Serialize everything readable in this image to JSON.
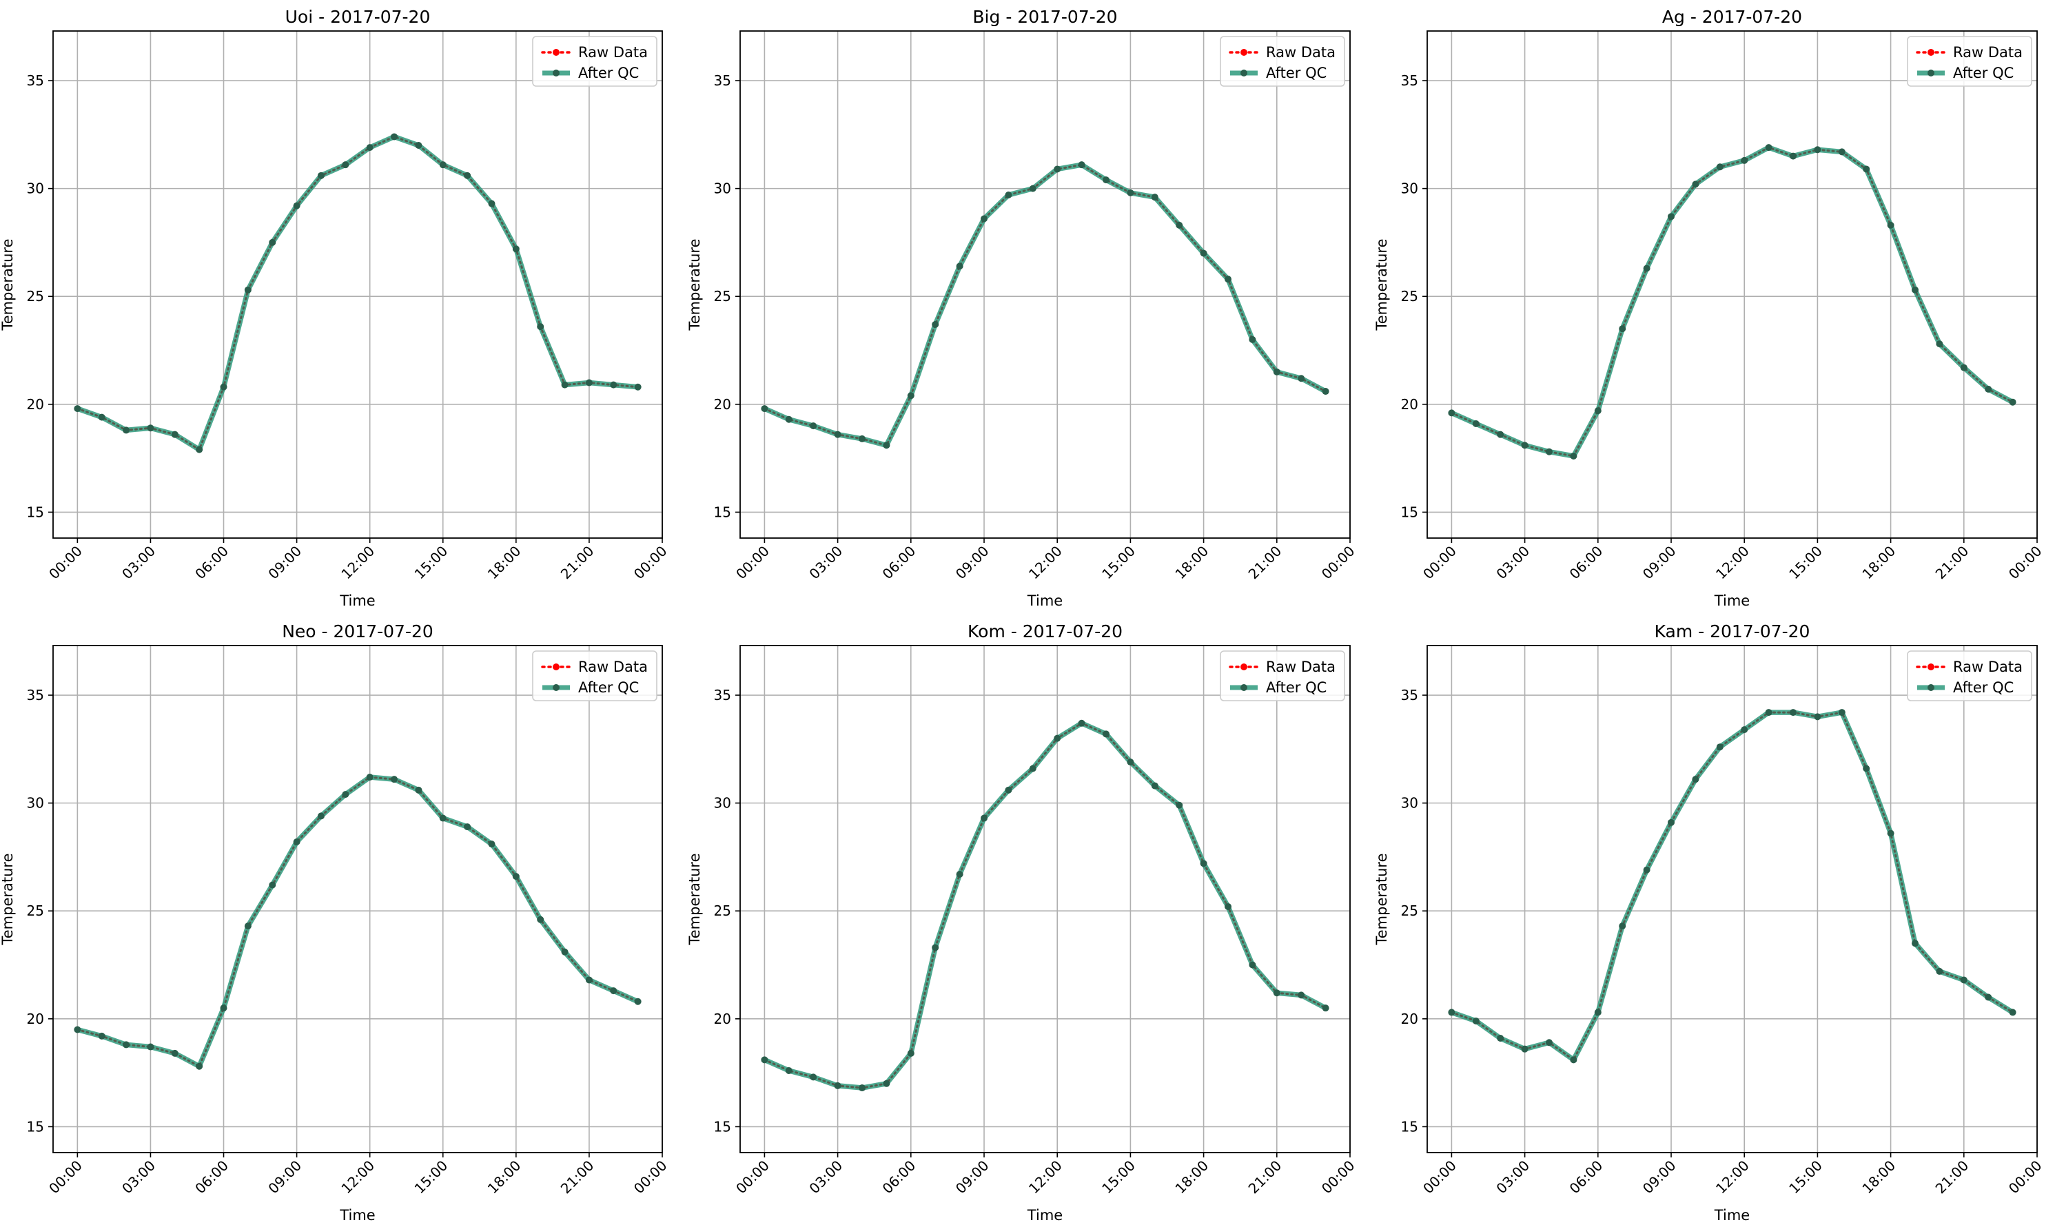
{
  "chart_data": [
    {
      "type": "line",
      "title": "Uoi - 2017-07-20",
      "xlabel": "Time",
      "ylabel": "Temperature",
      "xlim": [
        "-01:00",
        "24:00"
      ],
      "ylim": [
        13.8,
        37.3
      ],
      "yticks": [
        15,
        20,
        25,
        30,
        35
      ],
      "xticks": [
        "00:00",
        "03:00",
        "06:00",
        "09:00",
        "12:00",
        "15:00",
        "18:00",
        "21:00",
        "00:00"
      ],
      "grid": true,
      "legend_position": "top-right",
      "x": [
        "00:00",
        "01:00",
        "02:00",
        "03:00",
        "04:00",
        "05:00",
        "06:00",
        "07:00",
        "08:00",
        "09:00",
        "10:00",
        "11:00",
        "12:00",
        "13:00",
        "14:00",
        "15:00",
        "16:00",
        "17:00",
        "18:00",
        "19:00",
        "20:00",
        "21:00",
        "22:00",
        "23:00"
      ],
      "series": [
        {
          "name": "Raw Data",
          "color": "#ff0000",
          "values": [
            19.8,
            19.4,
            18.8,
            18.9,
            18.6,
            17.9,
            20.8,
            25.3,
            27.5,
            29.2,
            30.6,
            31.1,
            31.9,
            32.4,
            32.0,
            31.1,
            30.6,
            29.3,
            27.2,
            23.6,
            20.9,
            21.0,
            20.9,
            20.8
          ]
        },
        {
          "name": "After QC",
          "color": "#2e9a7c",
          "values": [
            19.8,
            19.4,
            18.8,
            18.9,
            18.6,
            17.9,
            20.8,
            25.3,
            27.5,
            29.2,
            30.6,
            31.1,
            31.9,
            32.4,
            32.0,
            31.1,
            30.6,
            29.3,
            27.2,
            23.6,
            20.9,
            21.0,
            20.9,
            20.8
          ]
        }
      ]
    },
    {
      "type": "line",
      "title": "Big - 2017-07-20",
      "xlabel": "Time",
      "ylabel": "Temperature",
      "xlim": [
        "-01:00",
        "24:00"
      ],
      "ylim": [
        13.8,
        37.3
      ],
      "yticks": [
        15,
        20,
        25,
        30,
        35
      ],
      "xticks": [
        "00:00",
        "03:00",
        "06:00",
        "09:00",
        "12:00",
        "15:00",
        "18:00",
        "21:00",
        "00:00"
      ],
      "grid": true,
      "legend_position": "top-right",
      "x": [
        "00:00",
        "01:00",
        "02:00",
        "03:00",
        "04:00",
        "05:00",
        "06:00",
        "07:00",
        "08:00",
        "09:00",
        "10:00",
        "11:00",
        "12:00",
        "13:00",
        "14:00",
        "15:00",
        "16:00",
        "17:00",
        "18:00",
        "19:00",
        "20:00",
        "21:00",
        "22:00",
        "23:00"
      ],
      "series": [
        {
          "name": "Raw Data",
          "color": "#ff0000",
          "values": [
            19.8,
            19.3,
            19.0,
            18.6,
            18.4,
            18.1,
            20.4,
            23.7,
            26.4,
            28.6,
            29.7,
            30.0,
            30.9,
            31.1,
            30.4,
            29.8,
            29.6,
            28.3,
            27.0,
            25.8,
            23.0,
            21.5,
            21.2,
            20.6
          ]
        },
        {
          "name": "After QC",
          "color": "#2e9a7c",
          "values": [
            19.8,
            19.3,
            19.0,
            18.6,
            18.4,
            18.1,
            20.4,
            23.7,
            26.4,
            28.6,
            29.7,
            30.0,
            30.9,
            31.1,
            30.4,
            29.8,
            29.6,
            28.3,
            27.0,
            25.8,
            23.0,
            21.5,
            21.2,
            20.6
          ]
        }
      ]
    },
    {
      "type": "line",
      "title": "Ag - 2017-07-20",
      "xlabel": "Time",
      "ylabel": "Temperature",
      "xlim": [
        "-01:00",
        "24:00"
      ],
      "ylim": [
        13.8,
        37.3
      ],
      "yticks": [
        15,
        20,
        25,
        30,
        35
      ],
      "xticks": [
        "00:00",
        "03:00",
        "06:00",
        "09:00",
        "12:00",
        "15:00",
        "18:00",
        "21:00",
        "00:00"
      ],
      "grid": true,
      "legend_position": "top-right",
      "x": [
        "00:00",
        "01:00",
        "02:00",
        "03:00",
        "04:00",
        "05:00",
        "06:00",
        "07:00",
        "08:00",
        "09:00",
        "10:00",
        "11:00",
        "12:00",
        "13:00",
        "14:00",
        "15:00",
        "16:00",
        "17:00",
        "18:00",
        "19:00",
        "20:00",
        "21:00",
        "22:00",
        "23:00"
      ],
      "series": [
        {
          "name": "Raw Data",
          "color": "#ff0000",
          "values": [
            19.6,
            19.1,
            18.6,
            18.1,
            17.8,
            17.6,
            19.7,
            23.5,
            26.3,
            28.7,
            30.2,
            31.0,
            31.3,
            31.9,
            31.5,
            31.8,
            31.7,
            30.9,
            28.3,
            25.3,
            22.8,
            21.7,
            20.7,
            20.1
          ]
        },
        {
          "name": "After QC",
          "color": "#2e9a7c",
          "values": [
            19.6,
            19.1,
            18.6,
            18.1,
            17.8,
            17.6,
            19.7,
            23.5,
            26.3,
            28.7,
            30.2,
            31.0,
            31.3,
            31.9,
            31.5,
            31.8,
            31.7,
            30.9,
            28.3,
            25.3,
            22.8,
            21.7,
            20.7,
            20.1
          ]
        }
      ]
    },
    {
      "type": "line",
      "title": "Neo - 2017-07-20",
      "xlabel": "Time",
      "ylabel": "Temperature",
      "xlim": [
        "-01:00",
        "24:00"
      ],
      "ylim": [
        13.8,
        37.3
      ],
      "yticks": [
        15,
        20,
        25,
        30,
        35
      ],
      "xticks": [
        "00:00",
        "03:00",
        "06:00",
        "09:00",
        "12:00",
        "15:00",
        "18:00",
        "21:00",
        "00:00"
      ],
      "grid": true,
      "legend_position": "top-right",
      "x": [
        "00:00",
        "01:00",
        "02:00",
        "03:00",
        "04:00",
        "05:00",
        "06:00",
        "07:00",
        "08:00",
        "09:00",
        "10:00",
        "11:00",
        "12:00",
        "13:00",
        "14:00",
        "15:00",
        "16:00",
        "17:00",
        "18:00",
        "19:00",
        "20:00",
        "21:00",
        "22:00",
        "23:00"
      ],
      "series": [
        {
          "name": "Raw Data",
          "color": "#ff0000",
          "values": [
            19.5,
            19.2,
            18.8,
            18.7,
            18.4,
            17.8,
            20.5,
            24.3,
            26.2,
            28.2,
            29.4,
            30.4,
            31.2,
            31.1,
            30.6,
            29.3,
            28.9,
            28.1,
            26.6,
            24.6,
            23.1,
            21.8,
            21.3,
            20.8
          ]
        },
        {
          "name": "After QC",
          "color": "#2e9a7c",
          "values": [
            19.5,
            19.2,
            18.8,
            18.7,
            18.4,
            17.8,
            20.5,
            24.3,
            26.2,
            28.2,
            29.4,
            30.4,
            31.2,
            31.1,
            30.6,
            29.3,
            28.9,
            28.1,
            26.6,
            24.6,
            23.1,
            21.8,
            21.3,
            20.8
          ]
        }
      ]
    },
    {
      "type": "line",
      "title": "Kom - 2017-07-20",
      "xlabel": "Time",
      "ylabel": "Temperature",
      "xlim": [
        "-01:00",
        "24:00"
      ],
      "ylim": [
        13.8,
        37.3
      ],
      "yticks": [
        15,
        20,
        25,
        30,
        35
      ],
      "xticks": [
        "00:00",
        "03:00",
        "06:00",
        "09:00",
        "12:00",
        "15:00",
        "18:00",
        "21:00",
        "00:00"
      ],
      "grid": true,
      "legend_position": "top-right",
      "x": [
        "00:00",
        "01:00",
        "02:00",
        "03:00",
        "04:00",
        "05:00",
        "06:00",
        "07:00",
        "08:00",
        "09:00",
        "10:00",
        "11:00",
        "12:00",
        "13:00",
        "14:00",
        "15:00",
        "16:00",
        "17:00",
        "18:00",
        "19:00",
        "20:00",
        "21:00",
        "22:00",
        "23:00"
      ],
      "series": [
        {
          "name": "Raw Data",
          "color": "#ff0000",
          "values": [
            18.1,
            17.6,
            17.3,
            16.9,
            16.8,
            17.0,
            18.4,
            23.3,
            26.7,
            29.3,
            30.6,
            31.6,
            33.0,
            33.7,
            33.2,
            31.9,
            30.8,
            29.9,
            27.2,
            25.2,
            22.5,
            21.2,
            21.1,
            20.5
          ]
        },
        {
          "name": "After QC",
          "color": "#2e9a7c",
          "values": [
            18.1,
            17.6,
            17.3,
            16.9,
            16.8,
            17.0,
            18.4,
            23.3,
            26.7,
            29.3,
            30.6,
            31.6,
            33.0,
            33.7,
            33.2,
            31.9,
            30.8,
            29.9,
            27.2,
            25.2,
            22.5,
            21.2,
            21.1,
            20.5
          ]
        }
      ]
    },
    {
      "type": "line",
      "title": "Kam - 2017-07-20",
      "xlabel": "Time",
      "ylabel": "Temperature",
      "xlim": [
        "-01:00",
        "24:00"
      ],
      "ylim": [
        13.8,
        37.3
      ],
      "yticks": [
        15,
        20,
        25,
        30,
        35
      ],
      "xticks": [
        "00:00",
        "03:00",
        "06:00",
        "09:00",
        "12:00",
        "15:00",
        "18:00",
        "21:00",
        "00:00"
      ],
      "grid": true,
      "legend_position": "top-right",
      "x": [
        "00:00",
        "01:00",
        "02:00",
        "03:00",
        "04:00",
        "05:00",
        "06:00",
        "07:00",
        "08:00",
        "09:00",
        "10:00",
        "11:00",
        "12:00",
        "13:00",
        "14:00",
        "15:00",
        "16:00",
        "17:00",
        "18:00",
        "19:00",
        "20:00",
        "21:00",
        "22:00",
        "23:00"
      ],
      "series": [
        {
          "name": "Raw Data",
          "color": "#ff0000",
          "values": [
            20.3,
            19.9,
            19.1,
            18.6,
            18.9,
            18.1,
            20.3,
            24.3,
            26.9,
            29.1,
            31.1,
            32.6,
            33.4,
            34.2,
            34.2,
            34.0,
            34.2,
            31.6,
            28.6,
            23.5,
            22.2,
            21.8,
            21.0,
            20.3
          ]
        },
        {
          "name": "After QC",
          "color": "#2e9a7c",
          "values": [
            20.3,
            19.9,
            19.1,
            18.6,
            18.9,
            18.1,
            20.3,
            24.3,
            26.9,
            29.1,
            31.1,
            32.6,
            33.4,
            34.2,
            34.2,
            34.0,
            34.2,
            31.6,
            28.6,
            23.5,
            22.2,
            21.8,
            21.0,
            20.3
          ]
        }
      ]
    }
  ]
}
